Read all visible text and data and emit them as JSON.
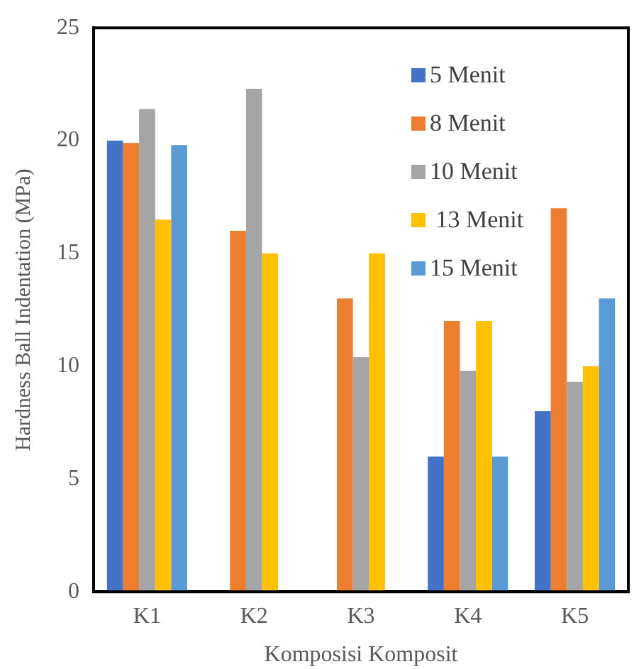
{
  "chart_data": {
    "type": "bar",
    "xlabel": "Komposisi Komposit",
    "ylabel": "Hardness Ball Indentation (MPa)",
    "categories": [
      "K1",
      "K2",
      "K3",
      "K4",
      "K5"
    ],
    "series": [
      {
        "name": "5 Menit",
        "color": "#4472c4",
        "values": [
          20,
          null,
          null,
          6,
          8
        ]
      },
      {
        "name": "8 Menit",
        "color": "#ed7d31",
        "values": [
          19.9,
          16,
          13,
          12,
          17
        ]
      },
      {
        "name": "10 Menit",
        "color": "#a5a5a5",
        "values": [
          21.4,
          22.3,
          10.4,
          9.8,
          9.3
        ]
      },
      {
        "name": " 13 Menit",
        "color": "#ffc000",
        "values": [
          16.5,
          15,
          15,
          12,
          10
        ]
      },
      {
        "name": "15 Menit",
        "color": "#5b9bd5",
        "values": [
          19.8,
          null,
          null,
          6,
          13
        ]
      }
    ],
    "ylim": [
      0,
      25
    ],
    "yticks": [
      0,
      5,
      10,
      15,
      20,
      25
    ],
    "grid": false,
    "legend": "top right"
  }
}
